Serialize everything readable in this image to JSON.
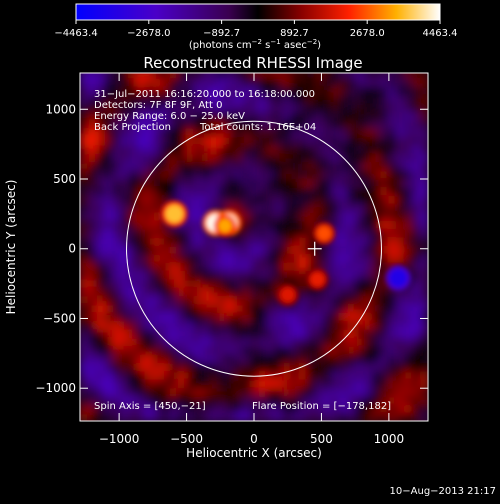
{
  "chart_data": {
    "type": "heatmap",
    "title": "Reconstructed RHESSI Image",
    "xlabel": "Heliocentric X (arcsec)",
    "ylabel": "Heliocentric Y (arcsec)",
    "xlim": [
      -1290,
      1290
    ],
    "ylim": [
      -1235,
      1260
    ],
    "xticks": [
      -1000,
      -500,
      0,
      500,
      1000
    ],
    "yticks": [
      -1000,
      -500,
      0,
      500,
      1000
    ],
    "xtick_labels": [
      "−1000",
      "−500",
      "0",
      "500",
      "1000"
    ],
    "ytick_labels": [
      "−1000",
      "−500",
      "0",
      "500",
      "1000"
    ],
    "colorbar": {
      "ticks": [
        -4463.4,
        -2678.0,
        -892.7,
        892.7,
        2678.0,
        4463.4
      ],
      "tick_labels": [
        "−4463.4",
        "−2678.0",
        "−892.7",
        "892.7",
        "2678.0",
        "4463.4"
      ],
      "range": [
        -4463.4,
        4463.4
      ],
      "unit_prefix": "(photons cm",
      "unit_exp1": "−2",
      "unit_mid": " s",
      "unit_exp2": "−1",
      "unit_mid2": " asec",
      "unit_suffix": ")"
    },
    "info_lines": [
      "31−Jul−2011 16:16:20.000 to 16:18:00.000",
      "Detectors: 7F 8F 9F, Att 0",
      "Energy Range: 6.0 − 25.0 keV",
      "Back Projection"
    ],
    "total_counts": "Total counts: 1.16E+04",
    "spin_axis": "Spin Axis = [450,−21]",
    "flare_position": "Flare Position = [−178,182]",
    "solar_disk": {
      "center": [
        0,
        0
      ],
      "radius_arcsec": 945
    },
    "crosshair_position": [
      450,
      0
    ],
    "sources": [
      {
        "x": -285,
        "y": 185,
        "value": 4400
      },
      {
        "x": -190,
        "y": 185,
        "value": 4300
      },
      {
        "x": -215,
        "y": 165,
        "value": 3300
      },
      {
        "x": -590,
        "y": 250,
        "value": 3600
      },
      {
        "x": 520,
        "y": 110,
        "value": 2600
      },
      {
        "x": 470,
        "y": -220,
        "value": 2000
      },
      {
        "x": 250,
        "y": -330,
        "value": 1900
      },
      {
        "x": 1070,
        "y": -210,
        "value": -3600
      }
    ]
  },
  "footer_date": "10−Aug−2013 21:17"
}
